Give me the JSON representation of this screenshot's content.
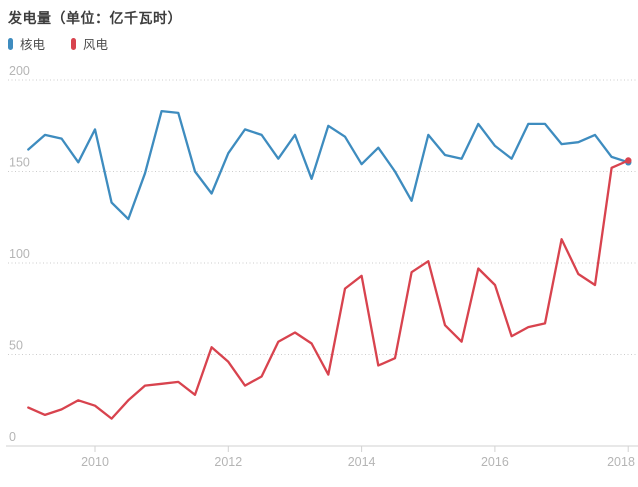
{
  "title": "发电量（单位：亿千瓦时）",
  "legend": {
    "items": [
      {
        "label": "核电",
        "color": "#3e8cbf"
      },
      {
        "label": "风电",
        "color": "#d8434e"
      }
    ]
  },
  "chart_data": {
    "type": "line",
    "title": "发电量（单位：亿千瓦时）",
    "x_unit": "year (quarterly points)",
    "x": [
      2009.0,
      2009.25,
      2009.5,
      2009.75,
      2010.0,
      2010.25,
      2010.5,
      2010.75,
      2011.0,
      2011.25,
      2011.5,
      2011.75,
      2012.0,
      2012.25,
      2012.5,
      2012.75,
      2013.0,
      2013.25,
      2013.5,
      2013.75,
      2014.0,
      2014.25,
      2014.5,
      2014.75,
      2015.0,
      2015.25,
      2015.5,
      2015.75,
      2016.0,
      2016.25,
      2016.5,
      2016.75,
      2017.0,
      2017.25,
      2017.5,
      2017.75,
      2018.0
    ],
    "series": [
      {
        "name": "核电",
        "color": "#3e8cbf",
        "values": [
          162,
          170,
          168,
          155,
          173,
          133,
          124,
          149,
          183,
          182,
          150,
          138,
          160,
          173,
          170,
          157,
          170,
          146,
          175,
          169,
          154,
          163,
          150,
          134,
          170,
          159,
          157,
          176,
          164,
          157,
          176,
          176,
          165,
          166,
          170,
          158,
          155
        ]
      },
      {
        "name": "风电",
        "color": "#d8434e",
        "values": [
          21,
          17,
          20,
          25,
          22,
          15,
          25,
          33,
          34,
          35,
          28,
          54,
          46,
          33,
          38,
          57,
          62,
          56,
          39,
          86,
          93,
          44,
          48,
          95,
          101,
          66,
          57,
          97,
          88,
          60,
          65,
          67,
          113,
          94,
          88,
          152,
          156
        ]
      }
    ],
    "yticks": [
      0,
      50,
      100,
      150,
      200
    ],
    "xticks": [
      2010,
      2012,
      2014,
      2016,
      2018
    ],
    "ylim": [
      0,
      200
    ],
    "grid": "dotted horizontal lines at 50/100/150/200, solid axis at 0",
    "legend_position": "top-left",
    "end_point_marker": true,
    "colors": {
      "grid": "#cdcdcd",
      "axis": "#d2d2d2",
      "tick_text": "#b5b5b5"
    }
  }
}
